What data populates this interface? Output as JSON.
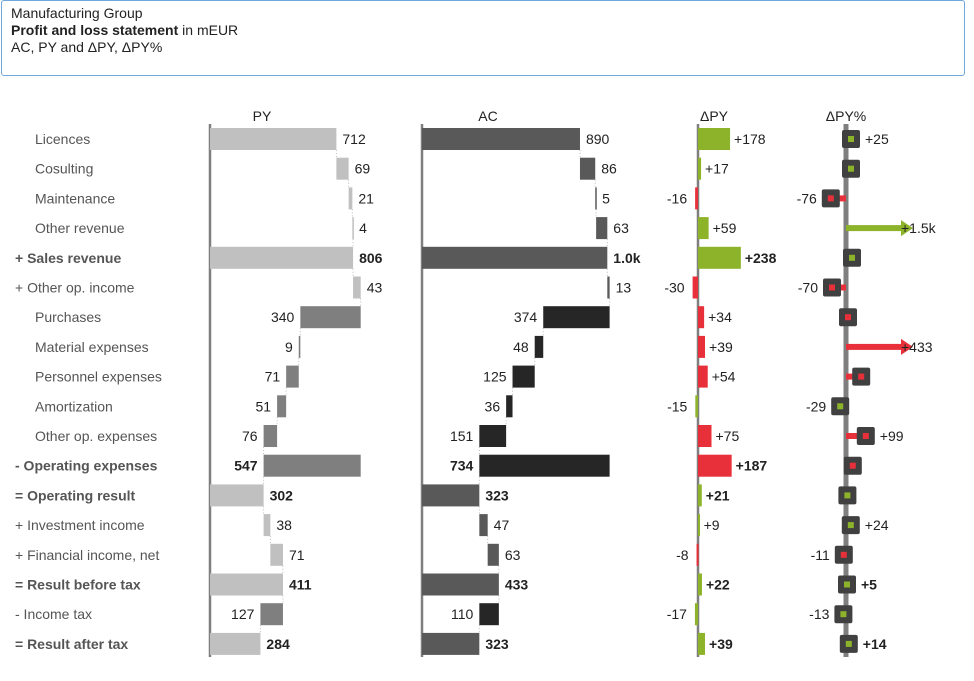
{
  "header": {
    "company": "Manufacturing Group",
    "title_bold": "Profit and loss statement",
    "title_rest": " in mEUR",
    "subtitle": "AC, PY and ΔPY, ΔPY%"
  },
  "colors": {
    "py": "#c0c0c0",
    "py_exp": "#7f7f7f",
    "ac": "#595959",
    "ac_exp": "#262626",
    "good": "#8db32a",
    "bad": "#e8303a",
    "axis": "#7f7f7f",
    "marker": "#404040"
  },
  "chart_data": {
    "type": "table",
    "title": "Profit and loss statement",
    "unit": "mEUR",
    "columns": [
      "PY",
      "AC",
      "ΔPY",
      "ΔPY%"
    ],
    "rows": [
      {
        "label": "Licences",
        "kind": "plain",
        "py": 712,
        "py_l": "712",
        "ac": 890,
        "ac_l": "890",
        "d": 178,
        "d_l": "+178",
        "p": 25,
        "p_l": "+25",
        "bold": false
      },
      {
        "label": "Cosulting",
        "kind": "plain",
        "py": 69,
        "py_l": "69",
        "ac": 86,
        "ac_l": "86",
        "d": 17,
        "d_l": "+17",
        "p": 25,
        "p_l": "",
        "bold": false
      },
      {
        "label": "Maintenance",
        "kind": "plain",
        "py": 21,
        "py_l": "21",
        "ac": 5,
        "ac_l": "5",
        "d": -16,
        "d_l": "-16",
        "p": -76,
        "p_l": "-76",
        "bold": false
      },
      {
        "label": "Other revenue",
        "kind": "plain",
        "py": 4,
        "py_l": "4",
        "ac": 63,
        "ac_l": "63",
        "d": 59,
        "d_l": "+59",
        "p": 1500,
        "p_l": "+1.5k",
        "bold": false
      },
      {
        "label": "+ Sales revenue",
        "kind": "total",
        "py": 806,
        "py_l": "806",
        "ac": 1044,
        "ac_l": "1.0k",
        "d": 238,
        "d_l": "+238",
        "p": 30,
        "p_l": "",
        "bold": true
      },
      {
        "label": "+ Other op. income",
        "kind": "plain",
        "py": 43,
        "py_l": "43",
        "ac": 13,
        "ac_l": "13",
        "d": -30,
        "d_l": "-30",
        "p": -70,
        "p_l": "-70",
        "bold": false
      },
      {
        "label": "Purchases",
        "kind": "expense",
        "py": 340,
        "py_l": "340",
        "ac": 374,
        "ac_l": "374",
        "d": 34,
        "d_l": "+34",
        "p": 10,
        "p_l": "",
        "bold": false
      },
      {
        "label": "Material expenses",
        "kind": "expense",
        "py": 9,
        "py_l": "9",
        "ac": 48,
        "ac_l": "48",
        "d": 39,
        "d_l": "+39",
        "p": 433,
        "p_l": "+433",
        "bold": false
      },
      {
        "label": "Personnel expenses",
        "kind": "expense",
        "py": 71,
        "py_l": "71",
        "ac": 125,
        "ac_l": "125",
        "d": 54,
        "d_l": "+54",
        "p": 76,
        "p_l": "",
        "bold": false
      },
      {
        "label": "Amortization",
        "kind": "expense",
        "py": 51,
        "py_l": "51",
        "ac": 36,
        "ac_l": "36",
        "d": -15,
        "d_l": "-15",
        "p": -29,
        "p_l": "-29",
        "bold": false
      },
      {
        "label": "Other op. expenses",
        "kind": "expense",
        "py": 76,
        "py_l": "76",
        "ac": 151,
        "ac_l": "151",
        "d": 75,
        "d_l": "+75",
        "p": 99,
        "p_l": "+99",
        "bold": false
      },
      {
        "label": "- Operating expenses",
        "kind": "exptotal",
        "py": 547,
        "py_l": "547",
        "ac": 734,
        "ac_l": "734",
        "d": 187,
        "d_l": "+187",
        "p": 34,
        "p_l": "",
        "bold": true
      },
      {
        "label": "= Operating result",
        "kind": "result",
        "py": 302,
        "py_l": "302",
        "ac": 323,
        "ac_l": "323",
        "d": 21,
        "d_l": "+21",
        "p": 7,
        "p_l": "",
        "bold": true
      },
      {
        "label": "+ Investment income",
        "kind": "add",
        "py": 38,
        "py_l": "38",
        "ac": 47,
        "ac_l": "47",
        "d": 9,
        "d_l": "+9",
        "p": 24,
        "p_l": "+24",
        "bold": false
      },
      {
        "label": "+ Financial income, net",
        "kind": "add",
        "py": 71,
        "py_l": "71",
        "ac": 63,
        "ac_l": "63",
        "d": -8,
        "d_l": "-8",
        "p": -11,
        "p_l": "-11",
        "bold": false
      },
      {
        "label": "= Result before tax",
        "kind": "result",
        "py": 411,
        "py_l": "411",
        "ac": 433,
        "ac_l": "433",
        "d": 22,
        "d_l": "+22",
        "p": 5,
        "p_l": "+5",
        "bold": true
      },
      {
        "label": "- Income tax",
        "kind": "sub",
        "py": 127,
        "py_l": "127",
        "ac": 110,
        "ac_l": "110",
        "d": -17,
        "d_l": "-17",
        "p": -13,
        "p_l": "-13",
        "bold": false
      },
      {
        "label": "= Result after tax",
        "kind": "result",
        "py": 284,
        "py_l": "284",
        "ac": 323,
        "ac_l": "323",
        "d": 39,
        "d_l": "+39",
        "p": 14,
        "p_l": "+14",
        "bold": true
      }
    ]
  }
}
